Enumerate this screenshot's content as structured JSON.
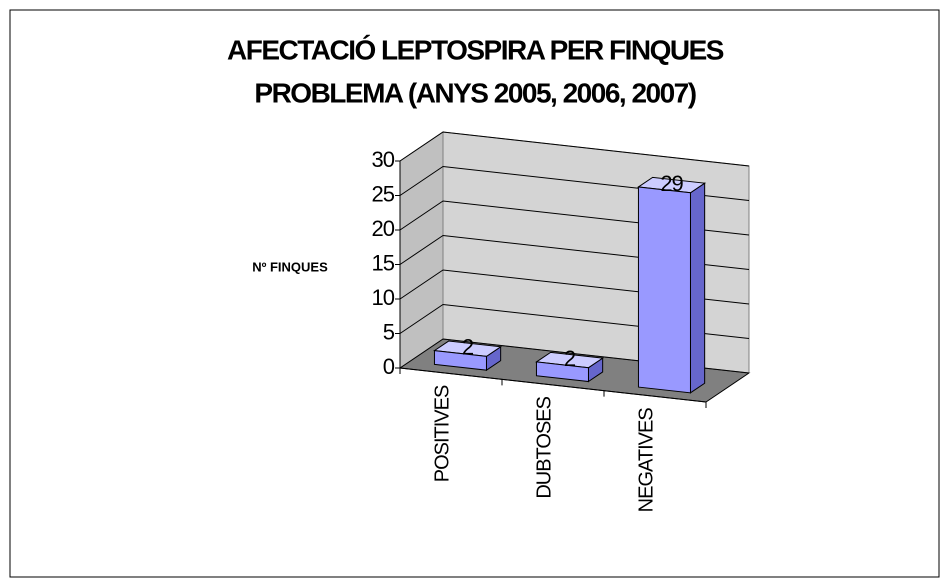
{
  "chart_data": {
    "type": "bar3d",
    "title": [
      "AFECTACIÓ LEPTOSPIRA PER FINQUES",
      "PROBLEMA (ANYS 2005, 2006, 2007)"
    ],
    "y_label": "Nº FINQUES",
    "categories": [
      "POSITIVES",
      "DUBTOSES",
      "NEGATIVES"
    ],
    "values": [
      2,
      2,
      29
    ],
    "color": "#9999ff",
    "ylim": [
      0,
      30
    ],
    "yticks": [
      0,
      5,
      10,
      15,
      20,
      25,
      30
    ],
    "grid": true
  }
}
